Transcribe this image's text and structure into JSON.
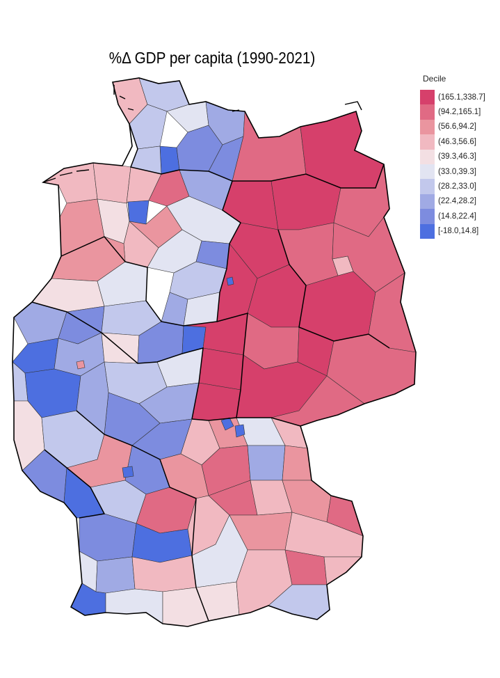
{
  "title": "%Δ GDP per capita (1990-2021)",
  "legend": {
    "title": "Decile",
    "items": [
      {
        "label": "(165.1,338.7]",
        "color": "#d6406b"
      },
      {
        "label": "(94.2,165.1]",
        "color": "#e06a84"
      },
      {
        "label": "(56.6,94.2]",
        "color": "#ea959f"
      },
      {
        "label": "(46.3,56.6]",
        "color": "#f1b9c1"
      },
      {
        "label": "(39.3,46.3]",
        "color": "#f3dfe3"
      },
      {
        "label": "(33.0,39.3]",
        "color": "#e2e4f2"
      },
      {
        "label": "(28.2,33.0]",
        "color": "#c2c8ec"
      },
      {
        "label": "(22.4,28.2]",
        "color": "#a0aae4"
      },
      {
        "label": "(14.8,22.4]",
        "color": "#7d8cdf"
      },
      {
        "label": "[-18.0,14.8]",
        "color": "#4d6fe0"
      }
    ]
  }
}
